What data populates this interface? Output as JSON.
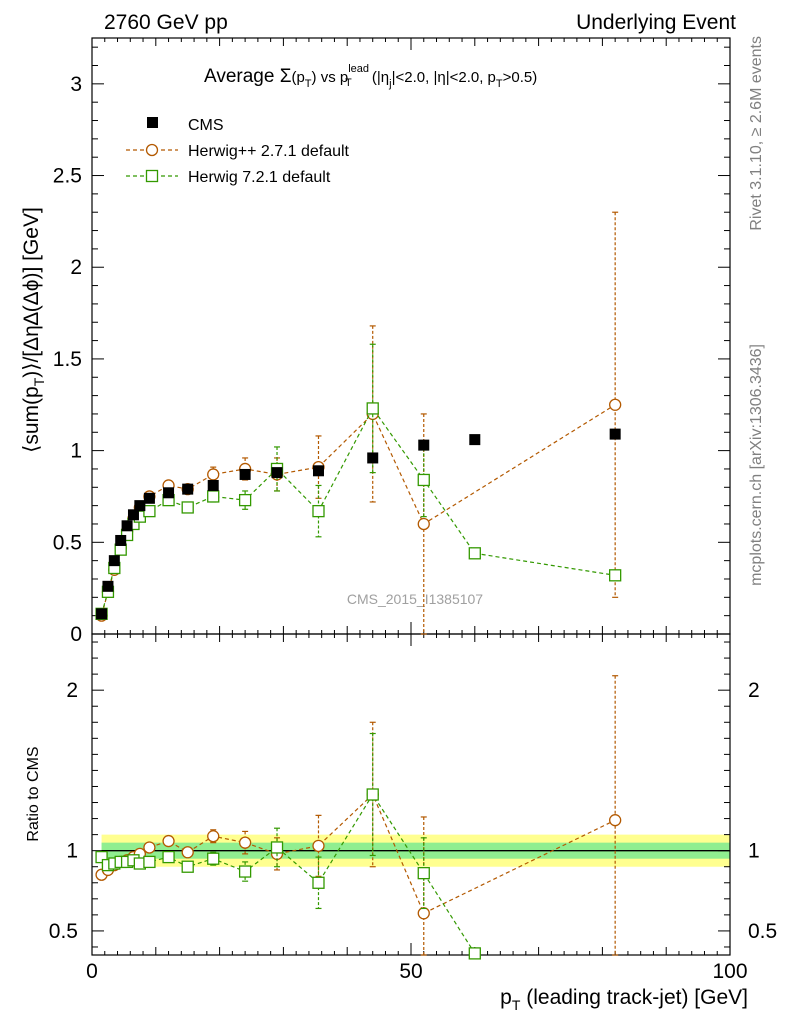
{
  "header": {
    "left": "2760 GeV pp",
    "right": "Underlying Event"
  },
  "side_text": {
    "rivet": "Rivet 3.1.10, ≥ 2.6M events",
    "mcplots": "mcplots.cern.ch [arXiv:1306.3436]"
  },
  "watermark": "CMS_2015_I1385107",
  "chart_data": [
    {
      "type": "scatter",
      "panel": "main",
      "title_parts": {
        "prefix": "Average ",
        "sigma": "Σ",
        "pt": "(p",
        "pt_sub": "T",
        "pt_close": ")",
        "vs": " vs p",
        "vs_sup": "lead",
        "vs_sub": "T",
        "cuts": " (|η",
        "cuts_sub": "j",
        "cuts2": "|<2.0, |η|<2.0, p",
        "cuts2_sub": "T",
        "cuts3": ">0.5)"
      },
      "ylabel": "⟨sum(p_T)⟩/[Δη∆(Δϕ)] [GeV]",
      "xlim": [
        0,
        100
      ],
      "ylim": [
        0,
        3.25
      ],
      "yticks": [
        0,
        0.5,
        1,
        1.5,
        2,
        2.5,
        3
      ],
      "ytick_labels": [
        "0",
        "0.5",
        "1",
        "1.5",
        "2",
        "2.5",
        "3"
      ],
      "legend_position": "top-left",
      "series": [
        {
          "name": "CMS",
          "color": "#000000",
          "marker": "filled-square",
          "x": [
            1.5,
            2.5,
            3.5,
            4.5,
            5.5,
            6.5,
            7.5,
            9,
            12,
            15,
            19,
            24,
            29,
            35.5,
            44,
            52,
            60,
            82
          ],
          "y": [
            0.11,
            0.26,
            0.4,
            0.51,
            0.59,
            0.65,
            0.7,
            0.74,
            0.77,
            0.79,
            0.81,
            0.87,
            0.88,
            0.89,
            0.96,
            1.03,
            1.06,
            1.09
          ]
        },
        {
          "name": "Herwig++ 2.7.1 default",
          "color": "#b35900",
          "marker": "open-circle",
          "x": [
            1.5,
            2.5,
            3.5,
            4.5,
            5.5,
            6.5,
            7.5,
            9,
            12,
            15,
            19,
            24,
            29,
            35.5,
            44,
            52,
            82
          ],
          "y": [
            0.1,
            0.23,
            0.35,
            0.47,
            0.56,
            0.63,
            0.69,
            0.75,
            0.81,
            0.79,
            0.87,
            0.9,
            0.87,
            0.91,
            1.2,
            0.6,
            1.25
          ],
          "yerr": [
            0,
            0.01,
            0.01,
            0.01,
            0.01,
            0.01,
            0.01,
            0.02,
            0.02,
            0.02,
            0.04,
            0.06,
            0.09,
            0.17,
            0.48,
            0.6,
            1.05
          ]
        },
        {
          "name": "Herwig 7.2.1 default",
          "color": "#339900",
          "marker": "open-square",
          "x": [
            1.5,
            2.5,
            3.5,
            4.5,
            5.5,
            6.5,
            7.5,
            9,
            12,
            15,
            19,
            24,
            29,
            35.5,
            44,
            52,
            60,
            82
          ],
          "y": [
            0.11,
            0.23,
            0.36,
            0.46,
            0.54,
            0.6,
            0.64,
            0.67,
            0.73,
            0.69,
            0.75,
            0.73,
            0.9,
            0.67,
            1.23,
            0.84,
            0.44,
            0.32
          ],
          "yerr": [
            0,
            0.01,
            0.01,
            0.01,
            0.01,
            0.01,
            0.01,
            0.02,
            0.02,
            0.02,
            0.03,
            0.05,
            0.12,
            0.14,
            0.35,
            0.2,
            0,
            0
          ]
        }
      ]
    },
    {
      "type": "scatter",
      "panel": "ratio",
      "ylabel": "Ratio to CMS",
      "xlabel": "p_T (leading track-jet) [GeV]",
      "xlim": [
        0,
        100
      ],
      "ylim": [
        0.35,
        2.35
      ],
      "xticks": [
        0,
        50,
        100
      ],
      "xtick_labels": [
        "0",
        "50",
        "100"
      ],
      "yticks": [
        0.5,
        1,
        2
      ],
      "ytick_labels": [
        "0.5",
        "1",
        "2"
      ],
      "band": {
        "inner": 0.05,
        "outer": 0.1,
        "inner_color": "#90ee90",
        "outer_color": "#ffff90",
        "x_start": 1.5,
        "x_end": 100
      },
      "series": [
        {
          "name": "Herwig++ 2.7.1 default",
          "color": "#b35900",
          "x": [
            1.5,
            2.5,
            3.5,
            4.5,
            5.5,
            6.5,
            7.5,
            9,
            12,
            15,
            19,
            24,
            29,
            35.5,
            44,
            52,
            82
          ],
          "y": [
            0.85,
            0.88,
            0.91,
            0.93,
            0.94,
            0.96,
            0.98,
            1.02,
            1.06,
            0.99,
            1.09,
            1.05,
            0.98,
            1.03,
            1.35,
            0.61,
            1.19
          ],
          "yerr": [
            0,
            0.01,
            0.01,
            0.01,
            0.01,
            0.01,
            0.02,
            0.02,
            0.03,
            0.03,
            0.04,
            0.07,
            0.1,
            0.19,
            0.45,
            0.6,
            0.9
          ]
        },
        {
          "name": "Herwig 7.2.1 default",
          "color": "#339900",
          "x": [
            1.5,
            2.5,
            3.5,
            4.5,
            5.5,
            6.5,
            7.5,
            9,
            12,
            15,
            19,
            24,
            29,
            35.5,
            44,
            52,
            60
          ],
          "y": [
            0.96,
            0.91,
            0.92,
            0.93,
            0.93,
            0.94,
            0.92,
            0.93,
            0.96,
            0.9,
            0.95,
            0.87,
            1.02,
            0.8,
            1.35,
            0.86,
            0.36
          ],
          "yerr": [
            0,
            0.01,
            0.01,
            0.01,
            0.01,
            0.01,
            0.02,
            0.02,
            0.03,
            0.03,
            0.04,
            0.06,
            0.12,
            0.16,
            0.38,
            0.22,
            0
          ]
        }
      ]
    }
  ]
}
